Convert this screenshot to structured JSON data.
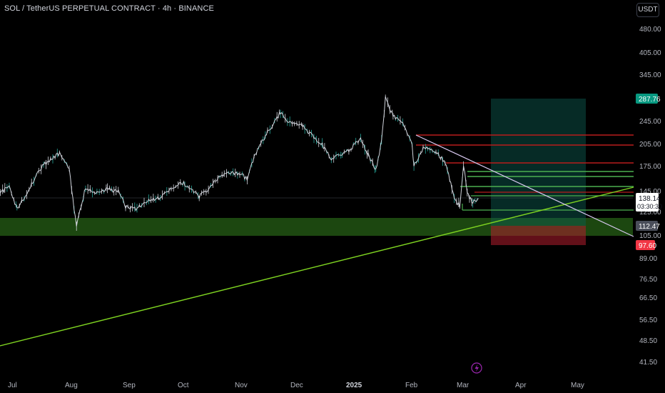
{
  "header": {
    "symbol_title": "SOL / TetherUS PERPETUAL CONTRACT · 4h · BINANCE",
    "currency_button": "USDT"
  },
  "price_scale": {
    "ticks": [
      "480.00",
      "405.00",
      "345.00",
      "245.00",
      "205.00",
      "175.00",
      "145.00",
      "125.00",
      "105.00",
      "89.00",
      "76.50",
      "66.50",
      "56.50",
      "48.50",
      "41.50"
    ],
    "badges": {
      "target": {
        "label": "287.76",
        "color": "#089981"
      },
      "last": {
        "label": "138.14",
        "countdown": "03:30:30",
        "color": "#ffffff"
      },
      "entry": {
        "label": "112.47",
        "color": "#4a4e5a"
      },
      "stop": {
        "label": "97.60",
        "color": "#f23645"
      }
    }
  },
  "time_scale": {
    "ticks": [
      "Jul",
      "Aug",
      "Sep",
      "Oct",
      "Nov",
      "Dec",
      "2025",
      "Feb",
      "Mar",
      "Apr",
      "May"
    ],
    "bold_tick": "2025"
  },
  "bottom_icon": "lightning-icon",
  "chart_data": {
    "type": "line",
    "title": "SOL / TetherUS PERPETUAL CONTRACT · 4h · BINANCE",
    "y_scale": "log",
    "ylim": [
      38,
      560
    ],
    "x": [
      "Jul",
      "Aug",
      "Sep",
      "Oct",
      "Nov",
      "Dec",
      "2025",
      "Feb",
      "Mar",
      "Apr",
      "May"
    ],
    "series": [
      {
        "values": [
          {
            "t": "Jun 22",
            "v": 140
          },
          {
            "t": "Jul 1",
            "v": 150
          },
          {
            "t": "Jul 5",
            "v": 128
          },
          {
            "t": "Jul 10",
            "v": 142
          },
          {
            "t": "Jul 15",
            "v": 165
          },
          {
            "t": "Jul 20",
            "v": 180
          },
          {
            "t": "Jul 27",
            "v": 192
          },
          {
            "t": "Aug 1",
            "v": 170
          },
          {
            "t": "Aug 5",
            "v": 112
          },
          {
            "t": "Aug 10",
            "v": 150
          },
          {
            "t": "Aug 15",
            "v": 145
          },
          {
            "t": "Aug 22",
            "v": 148
          },
          {
            "t": "Aug 28",
            "v": 145
          },
          {
            "t": "Sep 1",
            "v": 130
          },
          {
            "t": "Sep 7",
            "v": 128
          },
          {
            "t": "Sep 12",
            "v": 135
          },
          {
            "t": "Sep 18",
            "v": 138
          },
          {
            "t": "Sep 25",
            "v": 148
          },
          {
            "t": "Oct 1",
            "v": 155
          },
          {
            "t": "Oct 10",
            "v": 140
          },
          {
            "t": "Oct 15",
            "v": 148
          },
          {
            "t": "Oct 20",
            "v": 160
          },
          {
            "t": "Oct 26",
            "v": 168
          },
          {
            "t": "Nov 1",
            "v": 165
          },
          {
            "t": "Nov 5",
            "v": 160
          },
          {
            "t": "Nov 10",
            "v": 195
          },
          {
            "t": "Nov 16",
            "v": 225
          },
          {
            "t": "Nov 23",
            "v": 260
          },
          {
            "t": "Nov 28",
            "v": 240
          },
          {
            "t": "Dec 5",
            "v": 235
          },
          {
            "t": "Dec 10",
            "v": 220
          },
          {
            "t": "Dec 16",
            "v": 205
          },
          {
            "t": "Dec 21",
            "v": 185
          },
          {
            "t": "Dec 27",
            "v": 190
          },
          {
            "t": "Jan 1",
            "v": 200
          },
          {
            "t": "Jan 6",
            "v": 215
          },
          {
            "t": "Jan 10",
            "v": 190
          },
          {
            "t": "Jan 14",
            "v": 170
          },
          {
            "t": "Jan 17",
            "v": 210
          },
          {
            "t": "Jan 19",
            "v": 290
          },
          {
            "t": "Jan 23",
            "v": 255
          },
          {
            "t": "Jan 28",
            "v": 240
          },
          {
            "t": "Feb 2",
            "v": 205
          },
          {
            "t": "Feb 3",
            "v": 175
          },
          {
            "t": "Feb 8",
            "v": 200
          },
          {
            "t": "Feb 15",
            "v": 195
          },
          {
            "t": "Feb 20",
            "v": 180
          },
          {
            "t": "Feb 25",
            "v": 140
          },
          {
            "t": "Feb 28",
            "v": 130
          },
          {
            "t": "Mar 2",
            "v": 178
          },
          {
            "t": "Mar 4",
            "v": 142
          },
          {
            "t": "Mar 7",
            "v": 135
          },
          {
            "t": "Mar 10",
            "v": 138
          }
        ]
      }
    ],
    "annotations": {
      "support_zone": [
        100,
        115
      ],
      "rising_trendline": "uptrend support",
      "falling_trendline": "downtrend resistance",
      "horizontal_levels": [
        238,
        205,
        180,
        165,
        160,
        150,
        144,
        140,
        135,
        125
      ],
      "long_position": {
        "entry": 112.47,
        "target": 287.76,
        "stop": 97.6
      }
    }
  }
}
